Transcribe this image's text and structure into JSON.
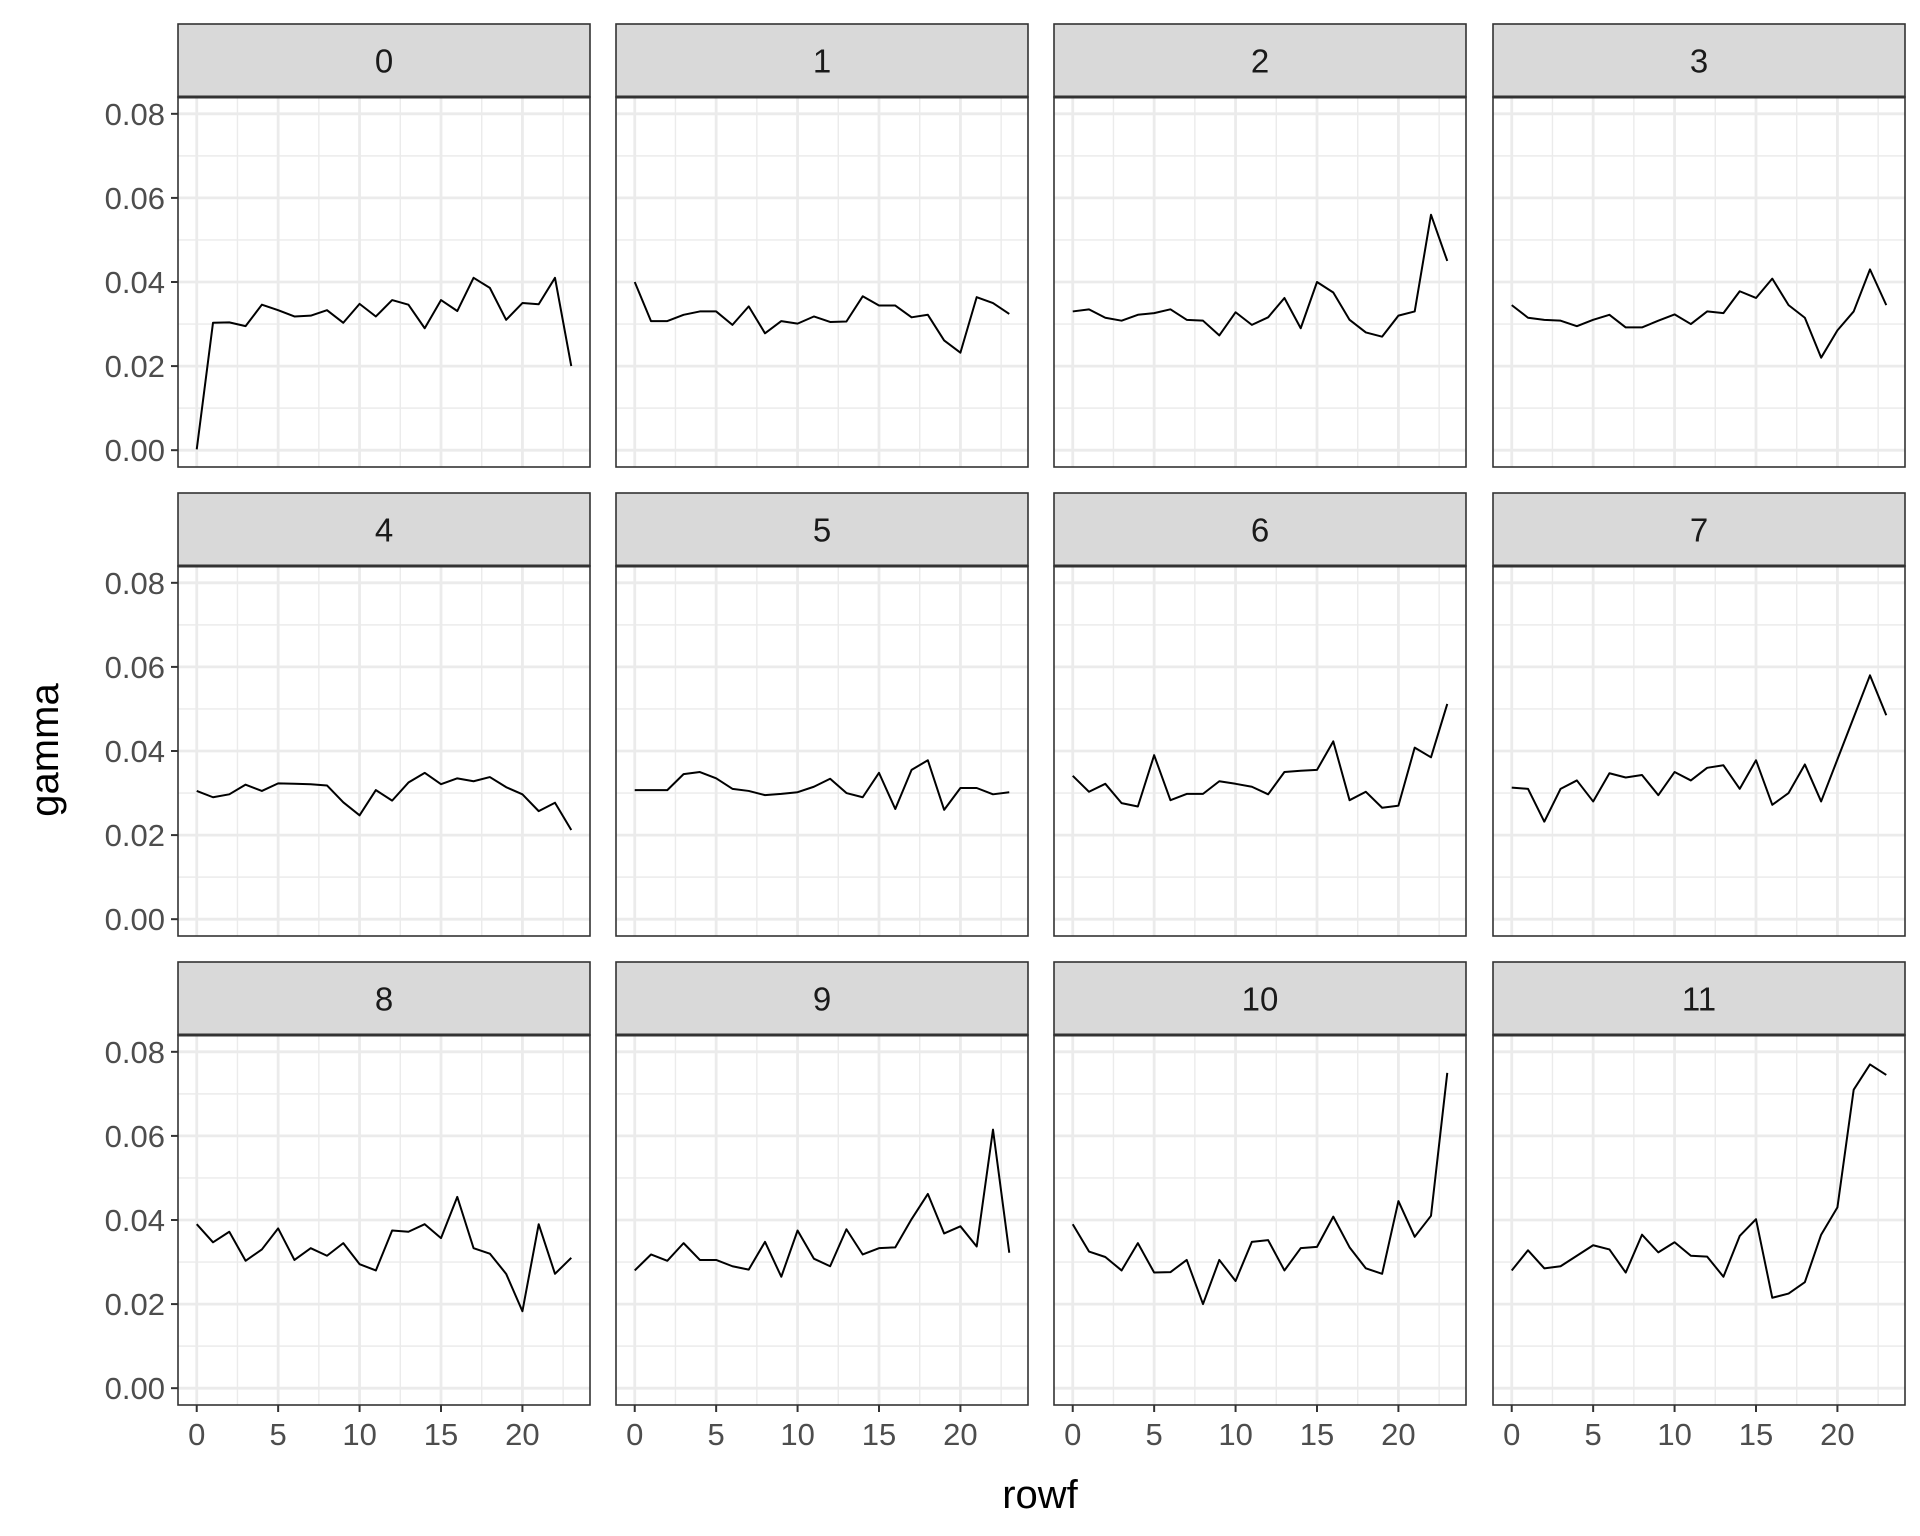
{
  "chart_data": {
    "type": "line",
    "facet_layout": {
      "rows": 3,
      "cols": 4
    },
    "xlabel": "rowf",
    "ylabel": "gamma",
    "xlim": [
      -1.15,
      24.15
    ],
    "ylim": [
      -0.004,
      0.084
    ],
    "x_ticks": [
      0,
      5,
      10,
      15,
      20
    ],
    "x_tick_labels": [
      "0",
      "5",
      "10",
      "15",
      "20"
    ],
    "y_ticks": [
      0.0,
      0.02,
      0.04,
      0.06,
      0.08
    ],
    "y_tick_labels": [
      "0.00",
      "0.02",
      "0.04",
      "0.06",
      "0.08"
    ],
    "grid": true,
    "line_color": "#000000",
    "panels": [
      {
        "label": "0",
        "x": [
          0,
          1,
          2,
          3,
          4,
          5,
          6,
          7,
          8,
          9,
          10,
          11,
          12,
          13,
          14,
          15,
          16,
          17,
          18,
          19,
          20,
          21,
          22,
          23
        ],
        "values": [
          0.0002,
          0.0303,
          0.0304,
          0.0295,
          0.0346,
          0.0333,
          0.0318,
          0.032,
          0.0333,
          0.0303,
          0.0348,
          0.0318,
          0.0357,
          0.0346,
          0.029,
          0.0357,
          0.0331,
          0.041,
          0.0386,
          0.031,
          0.035,
          0.0347,
          0.041,
          0.02
        ]
      },
      {
        "label": "1",
        "x": [
          0,
          1,
          2,
          3,
          4,
          5,
          6,
          7,
          8,
          9,
          10,
          11,
          12,
          13,
          14,
          15,
          16,
          17,
          18,
          19,
          20,
          21,
          22,
          23
        ],
        "values": [
          0.04,
          0.0307,
          0.0307,
          0.0322,
          0.033,
          0.033,
          0.0298,
          0.0342,
          0.0278,
          0.0307,
          0.0301,
          0.0318,
          0.0305,
          0.0306,
          0.0366,
          0.0344,
          0.0344,
          0.0316,
          0.0322,
          0.0261,
          0.0232,
          0.0364,
          0.035,
          0.0324
        ]
      },
      {
        "label": "2",
        "x": [
          0,
          1,
          2,
          3,
          4,
          5,
          6,
          7,
          8,
          9,
          10,
          11,
          12,
          13,
          14,
          15,
          16,
          17,
          18,
          19,
          20,
          21,
          22,
          23
        ],
        "values": [
          0.033,
          0.0335,
          0.0315,
          0.0308,
          0.0322,
          0.0326,
          0.0335,
          0.031,
          0.0308,
          0.0273,
          0.0328,
          0.0298,
          0.0316,
          0.0362,
          0.029,
          0.04,
          0.0375,
          0.031,
          0.028,
          0.027,
          0.032,
          0.033,
          0.056,
          0.045
        ]
      },
      {
        "label": "3",
        "x": [
          0,
          1,
          2,
          3,
          4,
          5,
          6,
          7,
          8,
          9,
          10,
          11,
          12,
          13,
          14,
          15,
          16,
          17,
          18,
          19,
          20,
          21,
          22,
          23
        ],
        "values": [
          0.0345,
          0.0315,
          0.031,
          0.0308,
          0.0295,
          0.031,
          0.0322,
          0.0292,
          0.0292,
          0.0308,
          0.0323,
          0.03,
          0.033,
          0.0326,
          0.0378,
          0.0362,
          0.0408,
          0.0345,
          0.0315,
          0.022,
          0.0285,
          0.033,
          0.043,
          0.0345
        ]
      },
      {
        "label": "4",
        "x": [
          0,
          1,
          2,
          3,
          4,
          5,
          6,
          7,
          8,
          9,
          10,
          11,
          12,
          13,
          14,
          15,
          16,
          17,
          18,
          19,
          20,
          21,
          22,
          23
        ],
        "values": [
          0.0305,
          0.029,
          0.0297,
          0.032,
          0.0305,
          0.0323,
          0.0322,
          0.0321,
          0.0318,
          0.0278,
          0.0247,
          0.0307,
          0.0282,
          0.0325,
          0.0348,
          0.0321,
          0.0335,
          0.0328,
          0.0338,
          0.0314,
          0.0297,
          0.0257,
          0.0277,
          0.0212
        ]
      },
      {
        "label": "5",
        "x": [
          0,
          1,
          2,
          3,
          4,
          5,
          6,
          7,
          8,
          9,
          10,
          11,
          12,
          13,
          14,
          15,
          16,
          17,
          18,
          19,
          20,
          21,
          22,
          23
        ],
        "values": [
          0.0307,
          0.0307,
          0.0307,
          0.0345,
          0.035,
          0.0335,
          0.031,
          0.0305,
          0.0295,
          0.0298,
          0.0302,
          0.0315,
          0.0334,
          0.03,
          0.029,
          0.0348,
          0.0262,
          0.0355,
          0.0378,
          0.026,
          0.0312,
          0.0312,
          0.0297,
          0.0302
        ]
      },
      {
        "label": "6",
        "x": [
          0,
          1,
          2,
          3,
          4,
          5,
          6,
          7,
          8,
          9,
          10,
          11,
          12,
          13,
          14,
          15,
          16,
          17,
          18,
          19,
          20,
          21,
          22,
          23
        ],
        "values": [
          0.0341,
          0.0303,
          0.0322,
          0.0276,
          0.0268,
          0.039,
          0.0283,
          0.0298,
          0.0298,
          0.0328,
          0.0322,
          0.0315,
          0.0297,
          0.035,
          0.0353,
          0.0355,
          0.0423,
          0.0283,
          0.0303,
          0.0265,
          0.027,
          0.0408,
          0.0385,
          0.0512
        ]
      },
      {
        "label": "7",
        "x": [
          0,
          1,
          2,
          3,
          4,
          5,
          6,
          7,
          8,
          9,
          10,
          11,
          12,
          13,
          14,
          15,
          16,
          17,
          18,
          19,
          20,
          21,
          22,
          23
        ],
        "values": [
          0.0313,
          0.031,
          0.0232,
          0.031,
          0.033,
          0.028,
          0.0347,
          0.0337,
          0.0343,
          0.0295,
          0.035,
          0.033,
          0.036,
          0.0366,
          0.031,
          0.0378,
          0.0272,
          0.03,
          0.0368,
          0.028,
          0.038,
          0.048,
          0.058,
          0.0485
        ]
      },
      {
        "label": "8",
        "x": [
          0,
          1,
          2,
          3,
          4,
          5,
          6,
          7,
          8,
          9,
          10,
          11,
          12,
          13,
          14,
          15,
          16,
          17,
          18,
          19,
          20,
          21,
          22,
          23
        ],
        "values": [
          0.039,
          0.0347,
          0.0372,
          0.0303,
          0.033,
          0.038,
          0.0305,
          0.0333,
          0.0315,
          0.0345,
          0.0295,
          0.028,
          0.0375,
          0.0372,
          0.039,
          0.0357,
          0.0455,
          0.0333,
          0.032,
          0.0272,
          0.0183,
          0.039,
          0.0272,
          0.031
        ]
      },
      {
        "label": "9",
        "x": [
          0,
          1,
          2,
          3,
          4,
          5,
          6,
          7,
          8,
          9,
          10,
          11,
          12,
          13,
          14,
          15,
          16,
          17,
          18,
          19,
          20,
          21,
          22,
          23
        ],
        "values": [
          0.028,
          0.0318,
          0.0303,
          0.0345,
          0.0305,
          0.0305,
          0.029,
          0.0282,
          0.0348,
          0.0265,
          0.0375,
          0.0308,
          0.029,
          0.0378,
          0.0318,
          0.0333,
          0.0335,
          0.0402,
          0.0462,
          0.0368,
          0.0385,
          0.0337,
          0.0615,
          0.0322
        ]
      },
      {
        "label": "10",
        "x": [
          0,
          1,
          2,
          3,
          4,
          5,
          6,
          7,
          8,
          9,
          10,
          11,
          12,
          13,
          14,
          15,
          16,
          17,
          18,
          19,
          20,
          21,
          22,
          23
        ],
        "values": [
          0.039,
          0.0325,
          0.0312,
          0.028,
          0.0345,
          0.0275,
          0.0276,
          0.0305,
          0.02,
          0.0305,
          0.0255,
          0.0348,
          0.0352,
          0.028,
          0.0333,
          0.0336,
          0.0408,
          0.0335,
          0.0285,
          0.0272,
          0.0445,
          0.036,
          0.041,
          0.075
        ]
      },
      {
        "label": "11",
        "x": [
          0,
          1,
          2,
          3,
          4,
          5,
          6,
          7,
          8,
          9,
          10,
          11,
          12,
          13,
          14,
          15,
          16,
          17,
          18,
          19,
          20,
          21,
          22,
          23
        ],
        "values": [
          0.028,
          0.0328,
          0.0285,
          0.029,
          0.0315,
          0.034,
          0.033,
          0.0275,
          0.0365,
          0.0323,
          0.0347,
          0.0315,
          0.0313,
          0.0265,
          0.0362,
          0.0402,
          0.0215,
          0.0225,
          0.0252,
          0.0365,
          0.043,
          0.071,
          0.077,
          0.0745
        ]
      }
    ]
  }
}
